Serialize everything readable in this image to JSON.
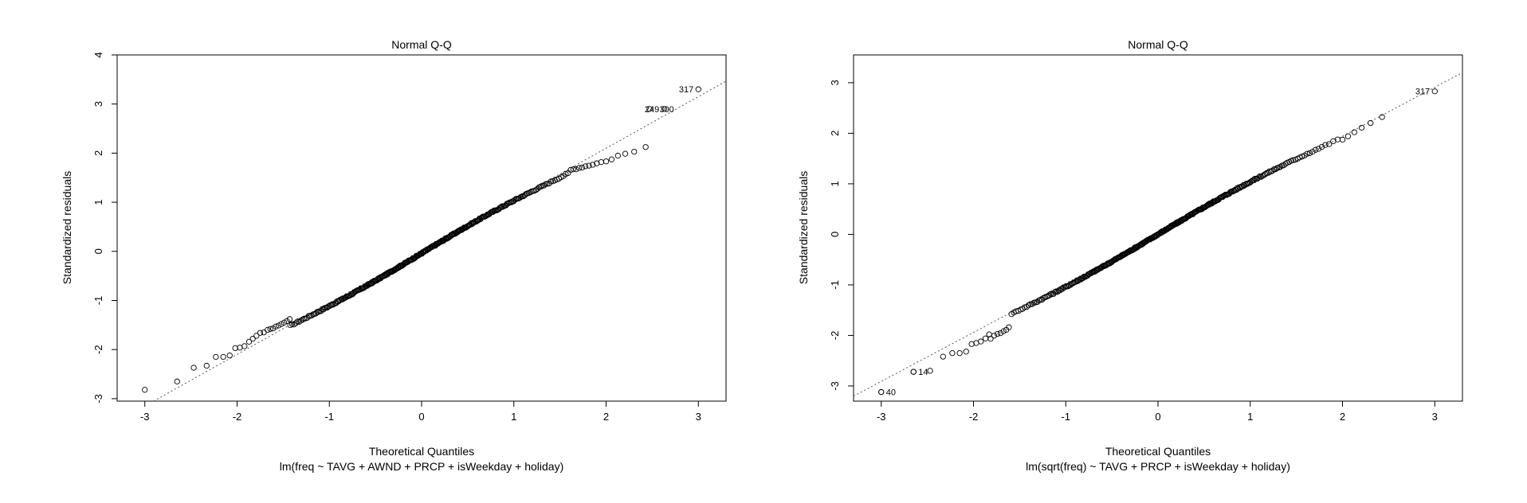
{
  "chart_data": [
    {
      "type": "scatter",
      "title": "Normal Q-Q",
      "xlabel": "Theoretical Quantiles",
      "subtitle": "lm(freq ~ TAVG + AWND + PRCP + isWeekday + holiday)",
      "ylabel": "Standardized residuals",
      "xlim": [
        -3.3,
        3.3
      ],
      "ylim": [
        -3.05,
        4.0
      ],
      "xticks": [
        "-3",
        "-2",
        "-1",
        "0",
        "1",
        "2",
        "3"
      ],
      "yticks": [
        "-3",
        "-2",
        "-1",
        "0",
        "1",
        "2",
        "3",
        "4"
      ],
      "reference_line": {
        "intercept": 0.0,
        "slope": 1.05
      },
      "points": [
        {
          "x": -3.0,
          "y": -2.82
        },
        {
          "x": -2.65,
          "y": -2.65
        },
        {
          "x": -2.47,
          "y": -2.37
        },
        {
          "x": -2.33,
          "y": -2.33
        },
        {
          "x": -2.23,
          "y": -2.15
        },
        {
          "x": -2.15,
          "y": -2.15
        },
        {
          "x": -2.08,
          "y": -2.12
        },
        {
          "x": -2.02,
          "y": -1.97
        },
        {
          "x": -1.97,
          "y": -1.96
        },
        {
          "x": -1.92,
          "y": -1.93
        },
        {
          "x": -1.87,
          "y": -1.84
        },
        {
          "x": -1.83,
          "y": -1.78
        },
        {
          "x": -1.79,
          "y": -1.72
        },
        {
          "x": -1.75,
          "y": -1.66
        },
        {
          "x": -1.71,
          "y": -1.65
        },
        {
          "x": -1.67,
          "y": -1.6
        },
        {
          "x": -1.64,
          "y": -1.58
        },
        {
          "x": -1.61,
          "y": -1.57
        },
        {
          "x": -1.58,
          "y": -1.53
        },
        {
          "x": -1.55,
          "y": -1.51
        },
        {
          "x": -1.52,
          "y": -1.48
        },
        {
          "x": -1.49,
          "y": -1.45
        },
        {
          "x": -1.46,
          "y": -1.42
        },
        {
          "x": -1.43,
          "y": -1.38
        }
      ],
      "labeled_points": [
        {
          "label": "317",
          "x": 3.0,
          "y": 3.3
        },
        {
          "label": "249",
          "x": 2.47,
          "y": 2.9
        },
        {
          "label": "300",
          "x": 2.63,
          "y": 2.9
        }
      ]
    },
    {
      "type": "scatter",
      "title": "Normal Q-Q",
      "xlabel": "Theoretical Quantiles",
      "subtitle": "lm(sqrt(freq) ~ TAVG + PRCP + isWeekday + holiday)",
      "ylabel": "Standardized residuals",
      "xlim": [
        -3.3,
        3.3
      ],
      "ylim": [
        -3.3,
        3.55
      ],
      "xticks": [
        "-3",
        "-2",
        "-1",
        "0",
        "1",
        "2",
        "3"
      ],
      "yticks": [
        "-3",
        "-2",
        "-1",
        "0",
        "1",
        "2",
        "3"
      ],
      "reference_line": {
        "intercept": 0.0,
        "slope": 0.97
      },
      "points": [
        {
          "x": -3.0,
          "y": -3.12
        },
        {
          "x": -2.65,
          "y": -2.72
        },
        {
          "x": -2.47,
          "y": -2.7
        },
        {
          "x": -2.33,
          "y": -2.42
        },
        {
          "x": -2.23,
          "y": -2.35
        },
        {
          "x": -2.15,
          "y": -2.35
        },
        {
          "x": -2.08,
          "y": -2.32
        },
        {
          "x": -2.02,
          "y": -2.17
        },
        {
          "x": -1.97,
          "y": -2.15
        },
        {
          "x": -1.92,
          "y": -2.12
        },
        {
          "x": -1.87,
          "y": -2.06
        },
        {
          "x": -1.83,
          "y": -1.98
        }
      ],
      "labeled_points": [
        {
          "label": "317",
          "x": 3.0,
          "y": 2.83
        },
        {
          "label": "14",
          "x": -2.65,
          "y": -2.72
        },
        {
          "label": "40",
          "x": -3.0,
          "y": -3.12
        }
      ]
    }
  ]
}
